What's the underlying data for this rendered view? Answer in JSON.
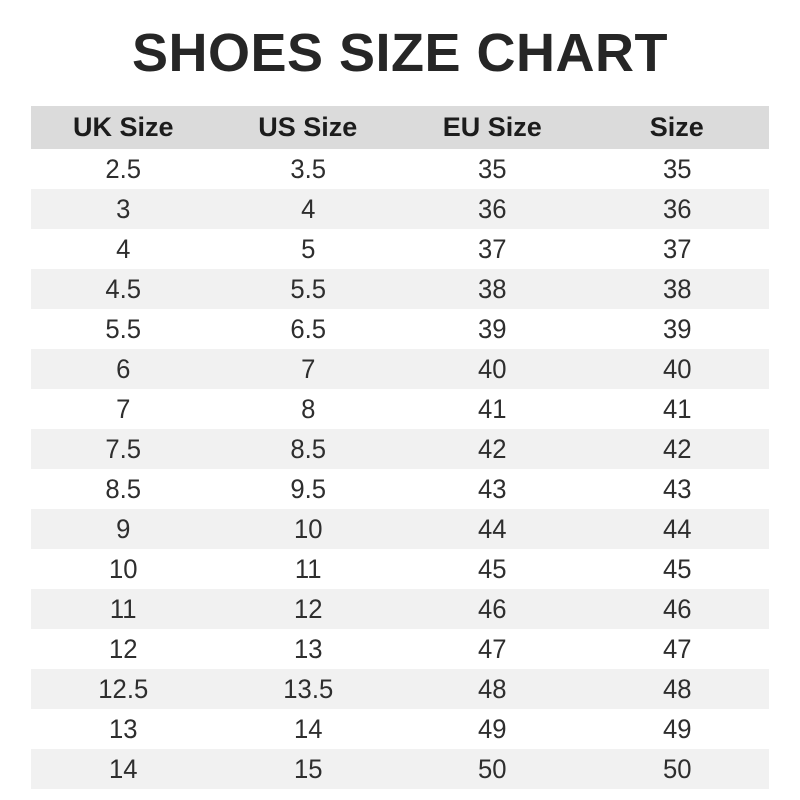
{
  "page": {
    "title": "SHOES SIZE CHART"
  },
  "colors": {
    "header_bg": "#dbdbdb",
    "stripe_bg": "#f1f1f1",
    "title_color": "#262626",
    "cell_text": "#2e2e2e"
  },
  "chart_data": {
    "type": "table",
    "title": "SHOES SIZE CHART",
    "columns": [
      "UK Size",
      "US Size",
      "EU Size",
      "Size"
    ],
    "rows": [
      [
        "2.5",
        "3.5",
        "35",
        "35"
      ],
      [
        "3",
        "4",
        "36",
        "36"
      ],
      [
        "4",
        "5",
        "37",
        "37"
      ],
      [
        "4.5",
        "5.5",
        "38",
        "38"
      ],
      [
        "5.5",
        "6.5",
        "39",
        "39"
      ],
      [
        "6",
        "7",
        "40",
        "40"
      ],
      [
        "7",
        "8",
        "41",
        "41"
      ],
      [
        "7.5",
        "8.5",
        "42",
        "42"
      ],
      [
        "8.5",
        "9.5",
        "43",
        "43"
      ],
      [
        "9",
        "10",
        "44",
        "44"
      ],
      [
        "10",
        "11",
        "45",
        "45"
      ],
      [
        "11",
        "12",
        "46",
        "46"
      ],
      [
        "12",
        "13",
        "47",
        "47"
      ],
      [
        "12.5",
        "13.5",
        "48",
        "48"
      ],
      [
        "13",
        "14",
        "49",
        "49"
      ],
      [
        "14",
        "15",
        "50",
        "50"
      ]
    ],
    "layout": {
      "striped_rows": true,
      "header_band": true,
      "row_alternation_start": "white"
    }
  }
}
